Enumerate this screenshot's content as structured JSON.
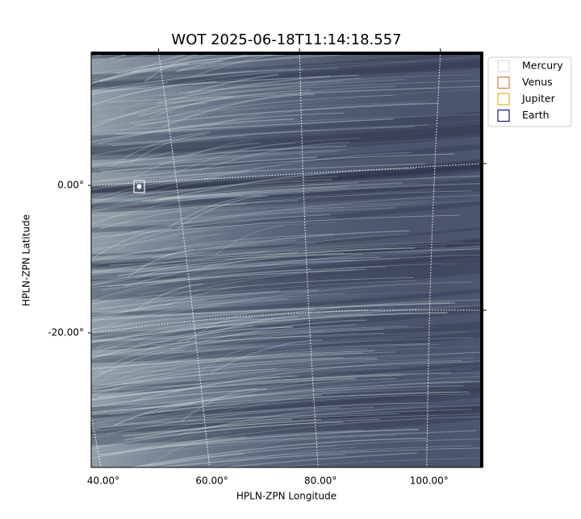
{
  "chart_data": {
    "type": "image",
    "title": "WOT 2025-06-18T11:14:18.557",
    "x_label": "HPLN-ZPN Longitude",
    "y_label": "HPLN-ZPN Latitude",
    "xticks": [
      {
        "value": 40,
        "label": "40.00°"
      },
      {
        "value": 60,
        "label": "60.00°"
      },
      {
        "value": 80,
        "label": "80.00°"
      },
      {
        "value": 100,
        "label": "100.00°"
      }
    ],
    "yticks": [
      {
        "value": 0,
        "label": "0.00°"
      },
      {
        "value": -20,
        "label": "-20.00°"
      }
    ],
    "grid": true,
    "legend_position": "upper right",
    "series": [
      {
        "name": "Mercury",
        "color": "#dddddd"
      },
      {
        "name": "Venus",
        "color": "#e07b39"
      },
      {
        "name": "Jupiter",
        "color": "#e6b422"
      },
      {
        "name": "Earth",
        "color": "#1a1a7a"
      }
    ]
  }
}
